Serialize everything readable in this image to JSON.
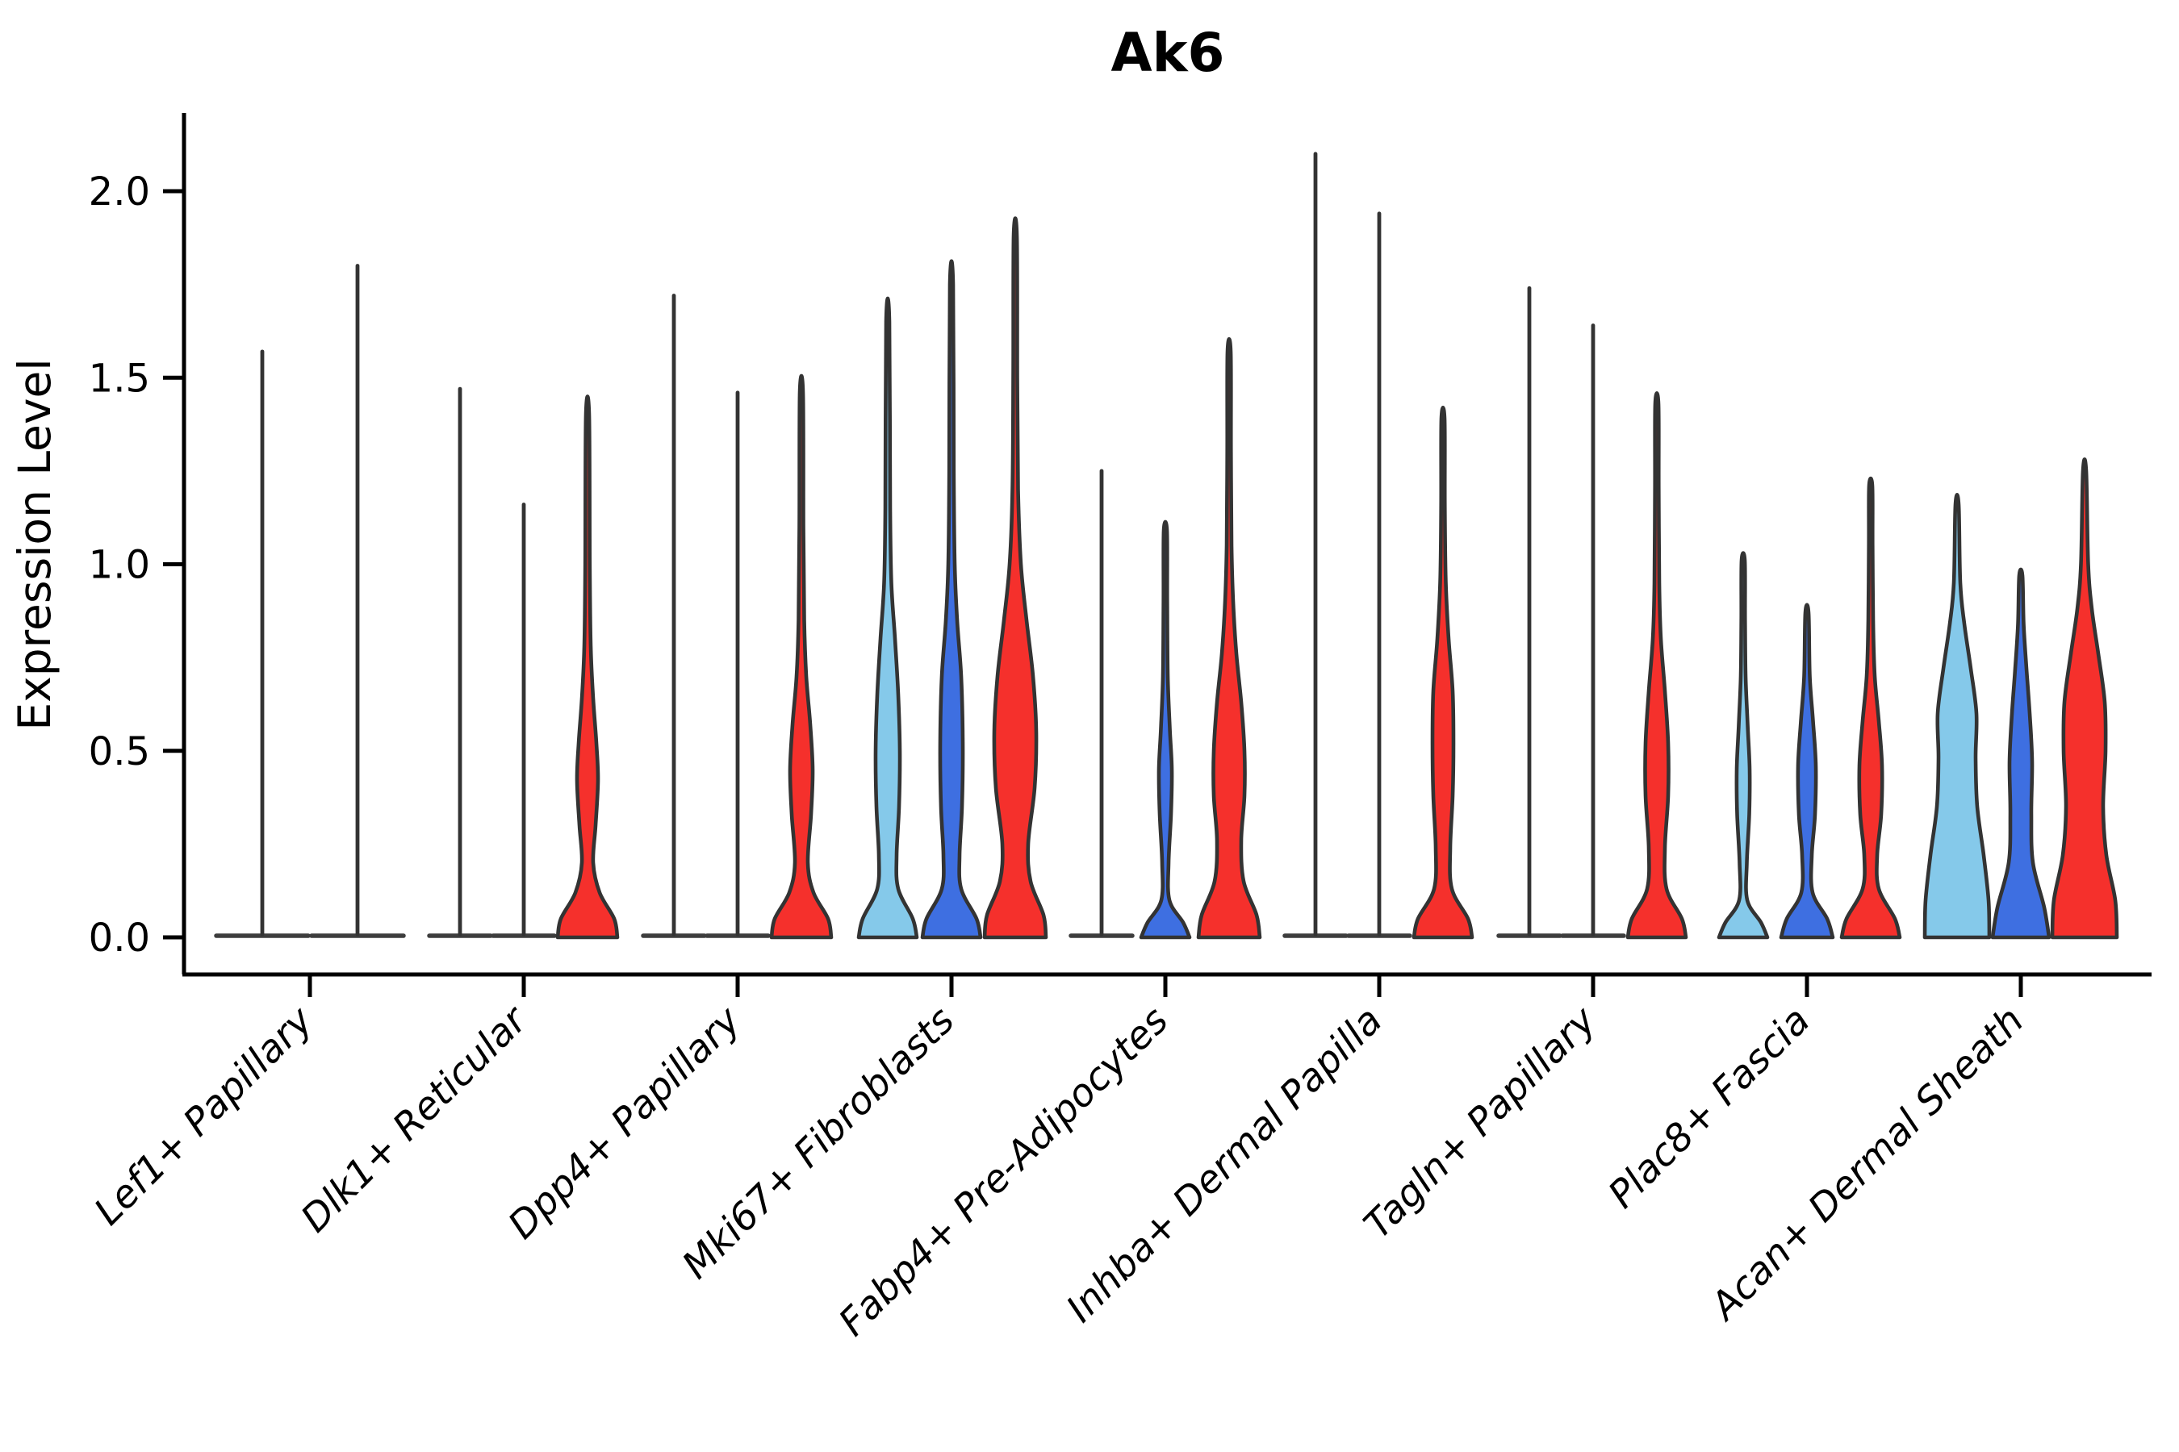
{
  "chart_data": {
    "type": "violin",
    "title": "Ak6",
    "ylabel": "Expression Level",
    "xlabel": "",
    "yticks": [
      "0.0",
      "0.5",
      "1.0",
      "1.5",
      "2.0"
    ],
    "ytick_values": [
      0.0,
      0.5,
      1.0,
      1.5,
      2.0
    ],
    "ylim": [
      -0.1,
      2.2
    ],
    "grid": false,
    "legend": "none",
    "palette": {
      "light_blue": "#85C9EA",
      "dark_blue": "#3E6FE1",
      "red": "#F5302C",
      "outline": "#333333",
      "baseline": "#3d3d3d"
    },
    "categories": [
      "Lef1+ Papillary",
      "Dlk1+ Reticular",
      "Dpp4+ Papillary",
      "Mki67+ Fibroblasts",
      "Fabp4+ Pre-Adipocytes",
      "Inhba+ Dermal Papilla",
      "Tagln+ Papillary",
      "Plac8+ Fascia",
      "Acan+ Dermal Sheath"
    ],
    "groups": [
      {
        "label": "Lef1+ Papillary",
        "violins": [
          {
            "color": "light_blue",
            "max": 1.57,
            "collapsed": true
          },
          {
            "color": "dark_blue",
            "max": 1.8,
            "collapsed": true
          }
        ]
      },
      {
        "label": "Dlk1+ Reticular",
        "violins": [
          {
            "color": "light_blue",
            "max": 1.47,
            "collapsed": true
          },
          {
            "color": "dark_blue",
            "max": 1.16,
            "collapsed": true
          },
          {
            "color": "red",
            "max": 1.4,
            "collapsed": false,
            "profile": [
              [
                0,
                37
              ],
              [
                0.05,
                33
              ],
              [
                0.12,
                15
              ],
              [
                0.2,
                7
              ],
              [
                0.3,
                10
              ],
              [
                0.42,
                13
              ],
              [
                0.52,
                11
              ],
              [
                0.64,
                7
              ],
              [
                0.78,
                4
              ],
              [
                1.0,
                2.8
              ],
              [
                1.4,
                2
              ]
            ]
          }
        ]
      },
      {
        "label": "Dpp4+ Papillary",
        "violins": [
          {
            "color": "light_blue",
            "max": 1.72,
            "collapsed": true
          },
          {
            "color": "dark_blue",
            "max": 1.46,
            "collapsed": true
          },
          {
            "color": "red",
            "max": 1.46,
            "collapsed": false,
            "profile": [
              [
                0,
                37
              ],
              [
                0.05,
                33
              ],
              [
                0.12,
                15
              ],
              [
                0.2,
                8
              ],
              [
                0.33,
                12
              ],
              [
                0.45,
                14
              ],
              [
                0.57,
                11
              ],
              [
                0.7,
                6
              ],
              [
                0.85,
                3.5
              ],
              [
                1.1,
                2.5
              ],
              [
                1.46,
                2
              ]
            ]
          }
        ]
      },
      {
        "label": "Mki67+ Fibroblasts",
        "violins": [
          {
            "color": "light_blue",
            "max": 1.65,
            "collapsed": false,
            "profile": [
              [
                0,
                36
              ],
              [
                0.05,
                31
              ],
              [
                0.13,
                13
              ],
              [
                0.22,
                11
              ],
              [
                0.35,
                14
              ],
              [
                0.5,
                15
              ],
              [
                0.65,
                13
              ],
              [
                0.8,
                9
              ],
              [
                0.95,
                4.5
              ],
              [
                1.15,
                3
              ],
              [
                1.65,
                2
              ]
            ]
          },
          {
            "color": "dark_blue",
            "max": 1.75,
            "collapsed": false,
            "profile": [
              [
                0,
                36
              ],
              [
                0.05,
                31
              ],
              [
                0.13,
                12
              ],
              [
                0.22,
                10
              ],
              [
                0.35,
                13
              ],
              [
                0.52,
                14
              ],
              [
                0.7,
                12
              ],
              [
                0.85,
                7
              ],
              [
                1.0,
                4
              ],
              [
                1.25,
                2.8
              ],
              [
                1.75,
                2
              ]
            ]
          },
          {
            "color": "red",
            "max": 1.88,
            "collapsed": false,
            "profile": [
              [
                0,
                38
              ],
              [
                0.06,
                35
              ],
              [
                0.15,
                19
              ],
              [
                0.25,
                16
              ],
              [
                0.4,
                24
              ],
              [
                0.55,
                26
              ],
              [
                0.7,
                22
              ],
              [
                0.85,
                14
              ],
              [
                1.0,
                7
              ],
              [
                1.2,
                3.5
              ],
              [
                1.5,
                2.5
              ],
              [
                1.88,
                2
              ]
            ]
          }
        ]
      },
      {
        "label": "Fabp4+ Pre-Adipocytes",
        "violins": [
          {
            "color": "light_blue",
            "max": 1.25,
            "collapsed": true
          },
          {
            "color": "dark_blue",
            "max": 1.09,
            "collapsed": false,
            "profile": [
              [
                0,
                30
              ],
              [
                0.04,
                22
              ],
              [
                0.1,
                5
              ],
              [
                0.2,
                4
              ],
              [
                0.33,
                7
              ],
              [
                0.45,
                8
              ],
              [
                0.56,
                5.5
              ],
              [
                0.7,
                3
              ],
              [
                0.9,
                2.3
              ],
              [
                1.09,
                2
              ]
            ]
          },
          {
            "color": "red",
            "max": 1.57,
            "collapsed": false,
            "profile": [
              [
                0,
                38
              ],
              [
                0.06,
                34
              ],
              [
                0.15,
                18
              ],
              [
                0.26,
                15
              ],
              [
                0.38,
                19
              ],
              [
                0.5,
                19
              ],
              [
                0.63,
                15
              ],
              [
                0.76,
                9
              ],
              [
                0.9,
                5
              ],
              [
                1.05,
                3
              ],
              [
                1.3,
                2.3
              ],
              [
                1.57,
                2
              ]
            ]
          }
        ]
      },
      {
        "label": "Inhba+ Dermal Papilla",
        "violins": [
          {
            "color": "light_blue",
            "max": 2.1,
            "collapsed": true
          },
          {
            "color": "dark_blue",
            "max": 1.94,
            "collapsed": true
          },
          {
            "color": "red",
            "max": 1.39,
            "collapsed": false,
            "profile": [
              [
                0,
                36
              ],
              [
                0.05,
                31
              ],
              [
                0.13,
                11
              ],
              [
                0.24,
                9
              ],
              [
                0.38,
                12
              ],
              [
                0.52,
                13
              ],
              [
                0.66,
                12
              ],
              [
                0.8,
                7
              ],
              [
                0.95,
                3.5
              ],
              [
                1.15,
                2.3
              ],
              [
                1.39,
                2
              ]
            ]
          }
        ]
      },
      {
        "label": "Tagln+ Papillary",
        "violins": [
          {
            "color": "light_blue",
            "max": 1.74,
            "collapsed": true
          },
          {
            "color": "dark_blue",
            "max": 1.64,
            "collapsed": true
          },
          {
            "color": "red",
            "max": 1.43,
            "collapsed": false,
            "profile": [
              [
                0,
                36
              ],
              [
                0.05,
                31
              ],
              [
                0.13,
                12
              ],
              [
                0.24,
                10
              ],
              [
                0.38,
                14
              ],
              [
                0.52,
                14
              ],
              [
                0.66,
                10
              ],
              [
                0.8,
                5
              ],
              [
                0.95,
                3
              ],
              [
                1.2,
                2.3
              ],
              [
                1.43,
                2
              ]
            ]
          }
        ]
      },
      {
        "label": "Plac8+ Fascia",
        "violins": [
          {
            "color": "light_blue",
            "max": 1.01,
            "collapsed": false,
            "profile": [
              [
                0,
                30
              ],
              [
                0.04,
                22
              ],
              [
                0.1,
                5
              ],
              [
                0.2,
                4.5
              ],
              [
                0.33,
                7.5
              ],
              [
                0.45,
                8
              ],
              [
                0.57,
                5.5
              ],
              [
                0.7,
                3
              ],
              [
                0.85,
                2.3
              ],
              [
                1.01,
                2
              ]
            ]
          },
          {
            "color": "dark_blue",
            "max": 0.87,
            "collapsed": false,
            "profile": [
              [
                0,
                32
              ],
              [
                0.05,
                25
              ],
              [
                0.12,
                7
              ],
              [
                0.22,
                6
              ],
              [
                0.33,
                10
              ],
              [
                0.46,
                11
              ],
              [
                0.58,
                7.5
              ],
              [
                0.7,
                3.5
              ],
              [
                0.87,
                2
              ]
            ]
          },
          {
            "color": "red",
            "max": 1.21,
            "collapsed": false,
            "profile": [
              [
                0,
                36
              ],
              [
                0.05,
                30
              ],
              [
                0.13,
                10
              ],
              [
                0.22,
                8
              ],
              [
                0.33,
                13
              ],
              [
                0.46,
                14
              ],
              [
                0.58,
                10
              ],
              [
                0.7,
                5
              ],
              [
                0.85,
                3
              ],
              [
                1.05,
                2.3
              ],
              [
                1.21,
                2
              ]
            ]
          }
        ]
      },
      {
        "label": "Acan+ Dermal Sheath",
        "violins": [
          {
            "color": "light_blue",
            "max": 1.16,
            "collapsed": false,
            "profile": [
              [
                0,
                40
              ],
              [
                0.1,
                39
              ],
              [
                0.22,
                33
              ],
              [
                0.35,
                25
              ],
              [
                0.48,
                23
              ],
              [
                0.6,
                24
              ],
              [
                0.72,
                17
              ],
              [
                0.84,
                9
              ],
              [
                0.95,
                4
              ],
              [
                1.16,
                2
              ]
            ]
          },
          {
            "color": "dark_blue",
            "max": 0.97,
            "collapsed": false,
            "profile": [
              [
                0,
                35
              ],
              [
                0.08,
                29
              ],
              [
                0.2,
                15
              ],
              [
                0.33,
                13
              ],
              [
                0.47,
                14
              ],
              [
                0.6,
                11
              ],
              [
                0.72,
                7
              ],
              [
                0.84,
                3.5
              ],
              [
                0.97,
                2
              ]
            ]
          },
          {
            "color": "red",
            "max": 1.25,
            "collapsed": false,
            "profile": [
              [
                0,
                40
              ],
              [
                0.1,
                38
              ],
              [
                0.22,
                27
              ],
              [
                0.35,
                23
              ],
              [
                0.5,
                26
              ],
              [
                0.63,
                25
              ],
              [
                0.76,
                17
              ],
              [
                0.88,
                9
              ],
              [
                1.0,
                4.5
              ],
              [
                1.25,
                2
              ]
            ]
          }
        ]
      }
    ]
  }
}
